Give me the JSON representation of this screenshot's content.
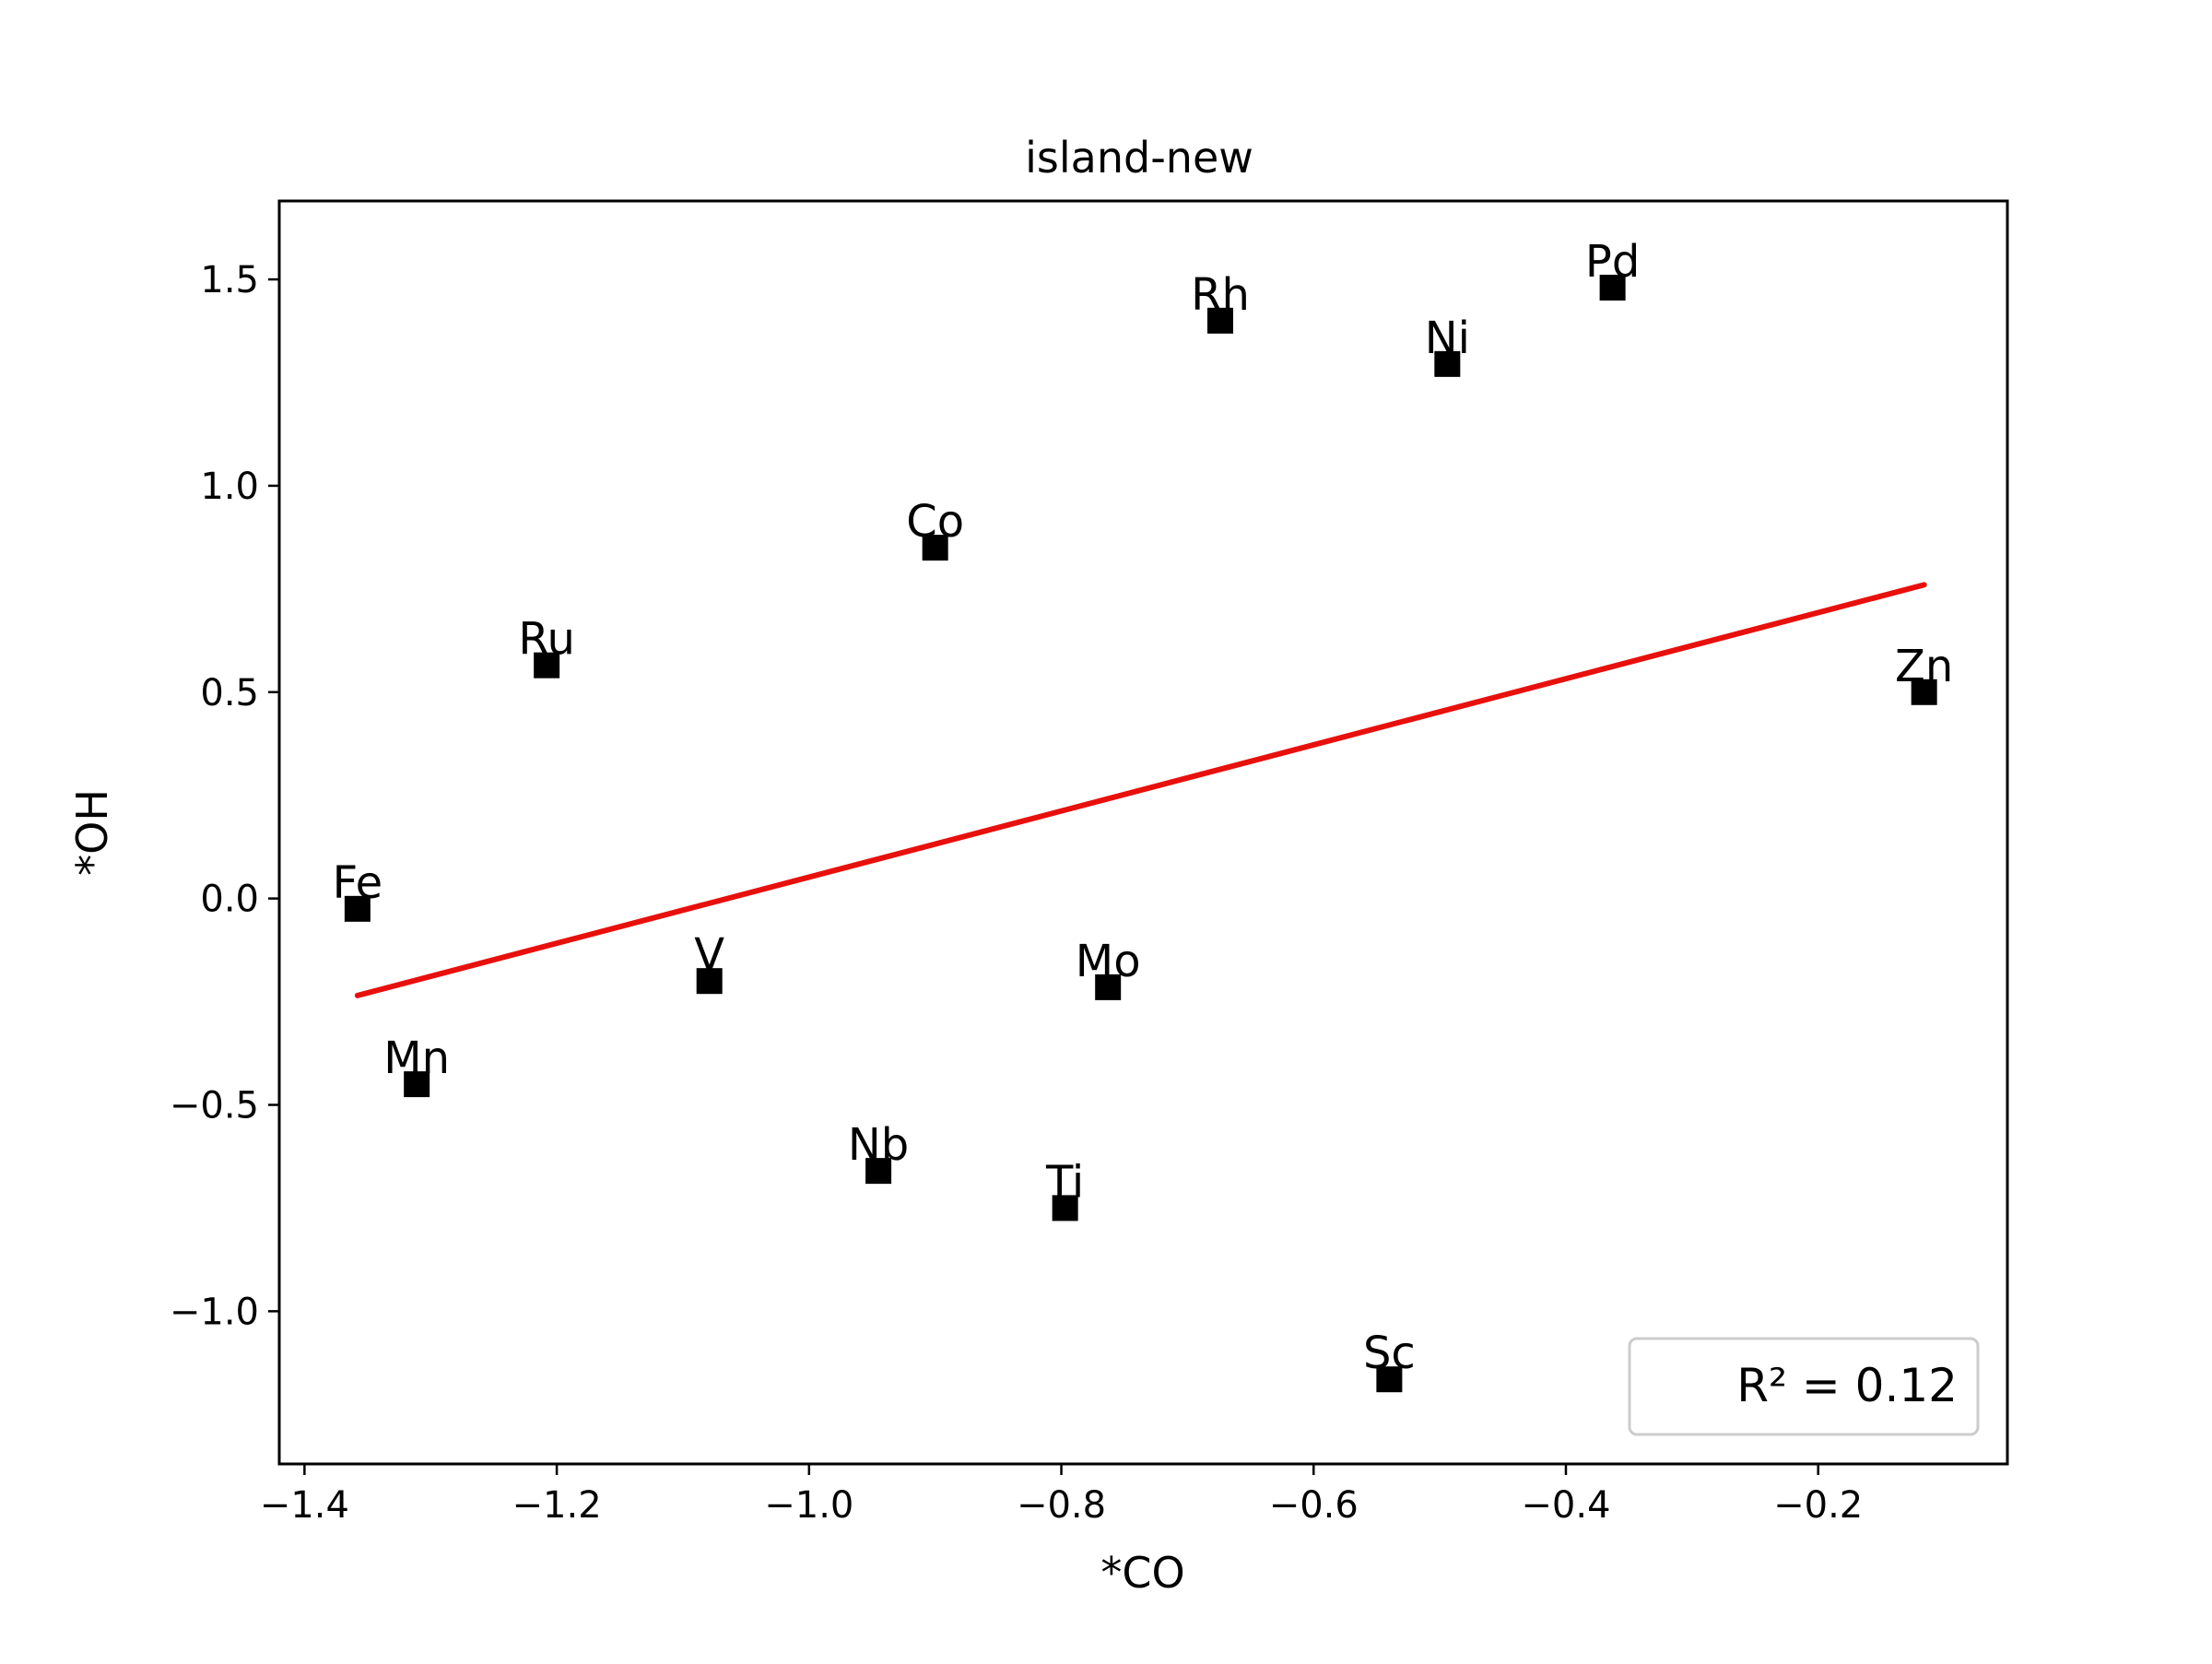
{
  "chart_data": {
    "type": "scatter",
    "title": "island-new",
    "xlabel": "*CO",
    "ylabel": "*OH",
    "xlim": [
      -1.42,
      -0.05
    ],
    "ylim": [
      -1.37,
      1.69
    ],
    "grid": false,
    "x_ticks": [
      -1.4,
      -1.2,
      -1.0,
      -0.8,
      -0.6,
      -0.4,
      -0.2
    ],
    "x_tick_labels": [
      "−1.4",
      "−1.2",
      "−1.0",
      "−0.8",
      "−0.6",
      "−0.4",
      "−0.2"
    ],
    "y_ticks": [
      -1.0,
      -0.5,
      0.0,
      0.5,
      1.0,
      1.5
    ],
    "y_tick_labels": [
      "−1.0",
      "−0.5",
      "0.0",
      "0.5",
      "1.0",
      "1.5"
    ],
    "points": [
      {
        "label": "Fe",
        "x": -1.358,
        "y": -0.025
      },
      {
        "label": "Mn",
        "x": -1.311,
        "y": -0.45
      },
      {
        "label": "Ru",
        "x": -1.208,
        "y": 0.565
      },
      {
        "label": "V",
        "x": -1.079,
        "y": -0.2
      },
      {
        "label": "Nb",
        "x": -0.945,
        "y": -0.66
      },
      {
        "label": "Co",
        "x": -0.9,
        "y": 0.85
      },
      {
        "label": "Ti",
        "x": -0.797,
        "y": -0.75
      },
      {
        "label": "Mo",
        "x": -0.763,
        "y": -0.215
      },
      {
        "label": "Rh",
        "x": -0.674,
        "y": 1.4
      },
      {
        "label": "Sc",
        "x": -0.54,
        "y": -1.165
      },
      {
        "label": "Ni",
        "x": -0.494,
        "y": 1.295
      },
      {
        "label": "Pd",
        "x": -0.363,
        "y": 1.48
      },
      {
        "label": "Zn",
        "x": -0.116,
        "y": 0.5
      }
    ],
    "marker": "square",
    "marker_color": "#000000",
    "fit_line": {
      "x": [
        -1.358,
        -0.116
      ],
      "y": [
        -0.235,
        0.76
      ],
      "color": "#e8100c"
    },
    "legend": {
      "text": "R² = 0.12",
      "placement": "bottom-right"
    }
  }
}
